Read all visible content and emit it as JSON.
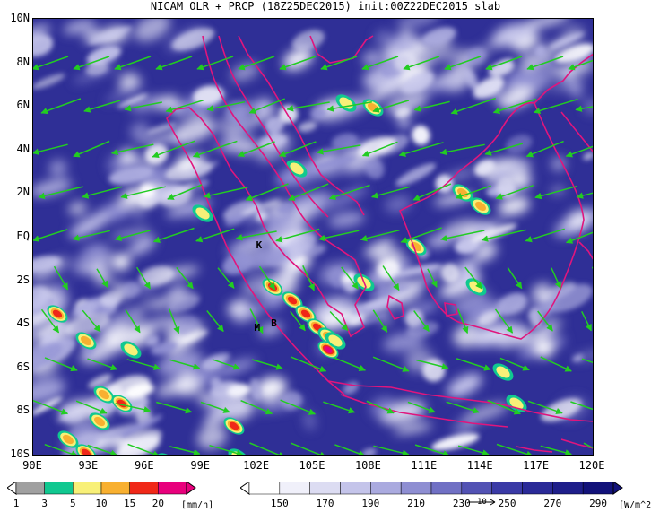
{
  "title": "NICAM OLR + PRCP (18Z25DEC2015) init:00Z22DEC2015 slab",
  "map": {
    "lon_range": [
      90,
      120
    ],
    "lat_range": [
      -10,
      10
    ],
    "lat_ticks": [
      "10N",
      "8N",
      "6N",
      "4N",
      "2N",
      "EQ",
      "2S",
      "4S",
      "6S",
      "8S",
      "10S"
    ],
    "lon_ticks": [
      "90E",
      "93E",
      "96E",
      "99E",
      "102E",
      "105E",
      "108E",
      "111E",
      "114E",
      "117E",
      "120E"
    ],
    "labels": [
      {
        "text": "K",
        "lon": 102.0,
        "lat": -0.2
      },
      {
        "text": "M",
        "lon": 101.9,
        "lat": -4.0
      },
      {
        "text": "B",
        "lon": 102.8,
        "lat": -3.8
      }
    ],
    "coast_color": "#e0157d",
    "wind_color": "#22cc22"
  },
  "colorbars": {
    "precip": {
      "labels": [
        "1",
        "3",
        "5",
        "10",
        "15",
        "20"
      ],
      "colors": [
        "#a0a0a0",
        "#10c890",
        "#f8f078",
        "#f8b030",
        "#f02818",
        "#e8007c"
      ],
      "unit": "[mm/h]"
    },
    "olr": {
      "labels": [
        "150",
        "170",
        "190",
        "210",
        "230",
        "250",
        "270",
        "290"
      ],
      "colors": [
        "#ffffff",
        "#f0f0fa",
        "#dcdcf2",
        "#c4c4ea",
        "#aaaadf",
        "#8e8ed2",
        "#7070c4",
        "#5252b4",
        "#3a3aa6",
        "#2a2a98",
        "#1e1e8a",
        "#12127a"
      ],
      "unit": "[W/m^2]",
      "vector_ref": "10"
    }
  }
}
